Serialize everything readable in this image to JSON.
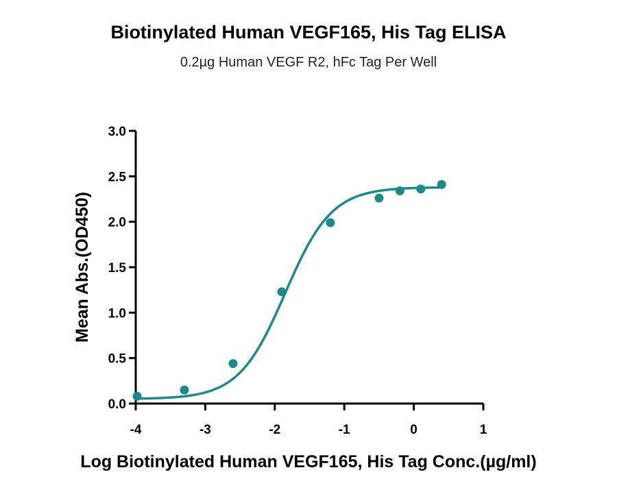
{
  "chart_data": {
    "type": "scatter",
    "title": "Biotinylated Human VEGF165, His Tag ELISA",
    "subtitle": "0.2µg Human VEGF R2, hFc Tag Per Well",
    "xlabel": "Log  Biotinylated Human VEGF165, His Tag Conc.(µg/ml)",
    "ylabel": "Mean Abs.(OD450)",
    "xlim": [
      -4,
      1
    ],
    "ylim": [
      0,
      3.0
    ],
    "x_ticks": [
      "-4",
      "-3",
      "-2",
      "-1",
      "0",
      "1"
    ],
    "y_ticks": [
      "0.0",
      "0.5",
      "1.0",
      "1.5",
      "2.0",
      "2.5",
      "3.0"
    ],
    "grid": false,
    "color": "#1a8a8a",
    "series": [
      {
        "x": [
          -3.98,
          -3.3,
          -2.6,
          -1.9,
          -1.2,
          -0.5,
          -0.2,
          0.1,
          0.4
        ],
        "y": [
          0.08,
          0.15,
          0.44,
          1.23,
          1.99,
          2.26,
          2.34,
          2.36,
          2.41
        ]
      }
    ],
    "fit_curve": {
      "model": "4PL",
      "bottom": 0.05,
      "top": 2.38,
      "logEC50": -1.85,
      "hill": 1.3
    }
  }
}
